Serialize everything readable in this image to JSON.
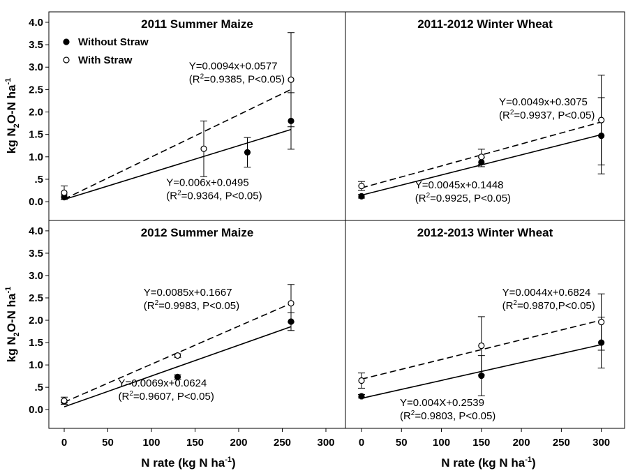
{
  "chart_data": {
    "type": "scatter",
    "legend": {
      "placement": "top-left",
      "entries": [
        {
          "label": "Without Straw",
          "marker": "filled-circle"
        },
        {
          "label": "With Straw",
          "marker": "open-circle"
        }
      ]
    },
    "ylabel": {
      "base": "kg N",
      "sub": "2",
      "mid": "O-N ha",
      "sup": "-1"
    },
    "xlabel": {
      "base": "N rate (kg N ha",
      "sup": "-1",
      "end": ")"
    },
    "panels": [
      {
        "title": "2011 Summer Maize",
        "xlim": [
          0,
          300
        ],
        "ylim": [
          0,
          4
        ],
        "show_x_ticks": false,
        "y_ticks": [
          "0.0",
          ".5",
          "1.0",
          "1.5",
          "2.0",
          "2.5",
          "3.0",
          "3.5",
          "4.0"
        ],
        "series": [
          {
            "name": "Without Straw",
            "style": "filled",
            "line": "solid",
            "x": [
              0,
              210,
              260
            ],
            "y": [
              0.1,
              1.1,
              1.8
            ],
            "err": [
              0.05,
              0.33,
              0.63
            ],
            "fit": {
              "slope": 0.006,
              "intercept": 0.0495,
              "x0": 0,
              "x1": 260
            }
          },
          {
            "name": "With Straw",
            "style": "open",
            "line": "dashed",
            "x": [
              0,
              160,
              260
            ],
            "y": [
              0.2,
              1.18,
              2.72
            ],
            "err": [
              0.15,
              0.62,
              1.05
            ],
            "fit": {
              "slope": 0.0094,
              "intercept": 0.0577,
              "x0": 0,
              "x1": 260
            }
          }
        ],
        "annotations": [
          {
            "line1": "Y=0.0094x+0.0577",
            "r2": "=0.9385, P<0.05)",
            "ax": 143,
            "ay": 2.95
          },
          {
            "line1": "Y=0.006x+0.0495",
            "r2": "=0.9364, P<0.05)",
            "ax": 117,
            "ay": 0.35
          }
        ]
      },
      {
        "title": "2011-2012 Winter Wheat",
        "xlim": [
          0,
          330
        ],
        "ylim": [
          0,
          4
        ],
        "show_x_ticks": false,
        "y_ticks": [],
        "series": [
          {
            "name": "Without Straw",
            "style": "filled",
            "line": "solid",
            "x": [
              0,
              150,
              300
            ],
            "y": [
              0.12,
              0.88,
              1.47
            ],
            "err": [
              0.04,
              0.1,
              0.85
            ],
            "fit": {
              "slope": 0.0045,
              "intercept": 0.1448,
              "x0": 0,
              "x1": 300
            }
          },
          {
            "name": "With Straw",
            "style": "open",
            "line": "dashed",
            "x": [
              0,
              150,
              300
            ],
            "y": [
              0.35,
              1.0,
              1.82
            ],
            "err": [
              0.1,
              0.17,
              1.0
            ],
            "fit": {
              "slope": 0.0049,
              "intercept": 0.3075,
              "x0": 0,
              "x1": 300
            }
          }
        ],
        "annotations": [
          {
            "line1": "Y=0.0049x+0.3075",
            "r2": "=0.9937, P<0.05)",
            "ax": 172,
            "ay": 2.15
          },
          {
            "line1": "Y=0.0045x+0.1448",
            "r2": "=0.9925, P<0.05)",
            "ax": 67,
            "ay": 0.3
          }
        ]
      },
      {
        "title": "2012 Summer Maize",
        "xlim": [
          0,
          300
        ],
        "ylim": [
          0,
          4
        ],
        "show_x_ticks": true,
        "x_ticks": [
          "0",
          "50",
          "100",
          "150",
          "200",
          "250",
          "300"
        ],
        "y_ticks": [
          "0.0",
          ".5",
          "1.0",
          "1.5",
          "2.0",
          "2.5",
          "3.0",
          "3.5",
          "4.0"
        ],
        "series": [
          {
            "name": "Without Straw",
            "style": "filled",
            "line": "solid",
            "x": [
              0,
              130,
              260
            ],
            "y": [
              0.18,
              0.73,
              1.97
            ],
            "err": [
              0.03,
              0.05,
              0.2
            ],
            "fit": {
              "slope": 0.0069,
              "intercept": 0.0624,
              "x0": 0,
              "x1": 260
            }
          },
          {
            "name": "With Straw",
            "style": "open",
            "line": "dashed",
            "x": [
              0,
              130,
              260
            ],
            "y": [
              0.2,
              1.21,
              2.38
            ],
            "err": [
              0.08,
              0.04,
              0.42
            ],
            "fit": {
              "slope": 0.0085,
              "intercept": 0.1667,
              "x0": 0,
              "x1": 260
            }
          }
        ],
        "annotations": [
          {
            "line1": "Y=0.0085x+0.1667",
            "r2": "=0.9983, P<0.05)",
            "ax": 91,
            "ay": 2.55
          },
          {
            "line1": "Y=0.0069x+0.0624",
            "r2": "=0.9607, P<0.05)",
            "ax": 62,
            "ay": 0.52
          }
        ]
      },
      {
        "title": "2012-2013 Winter Wheat",
        "xlim": [
          0,
          330
        ],
        "ylim": [
          0,
          4
        ],
        "show_x_ticks": true,
        "x_ticks": [
          "0",
          "50",
          "100",
          "150",
          "200",
          "250",
          "300"
        ],
        "y_ticks": [],
        "series": [
          {
            "name": "Without Straw",
            "style": "filled",
            "line": "solid",
            "x": [
              0,
              150,
              300
            ],
            "y": [
              0.3,
              0.76,
              1.5
            ],
            "err": [
              0.04,
              0.45,
              0.57
            ],
            "fit": {
              "slope": 0.004,
              "intercept": 0.2539,
              "x0": 0,
              "x1": 300
            }
          },
          {
            "name": "With Straw",
            "style": "open",
            "line": "dashed",
            "x": [
              0,
              150,
              300
            ],
            "y": [
              0.65,
              1.43,
              1.96
            ],
            "err": [
              0.17,
              0.65,
              0.63
            ],
            "fit": {
              "slope": 0.0044,
              "intercept": 0.6824,
              "x0": 0,
              "x1": 300
            }
          }
        ],
        "annotations": [
          {
            "line1": "Y=0.0044x+0.6824",
            "r2": "=0.9870,P<0.05)",
            "ax": 176,
            "ay": 2.55
          },
          {
            "line1": "Y=0.004X+0.2539",
            "r2": "=0.9803, P<0.05)",
            "ax": 48,
            "ay": 0.08
          }
        ]
      }
    ]
  }
}
